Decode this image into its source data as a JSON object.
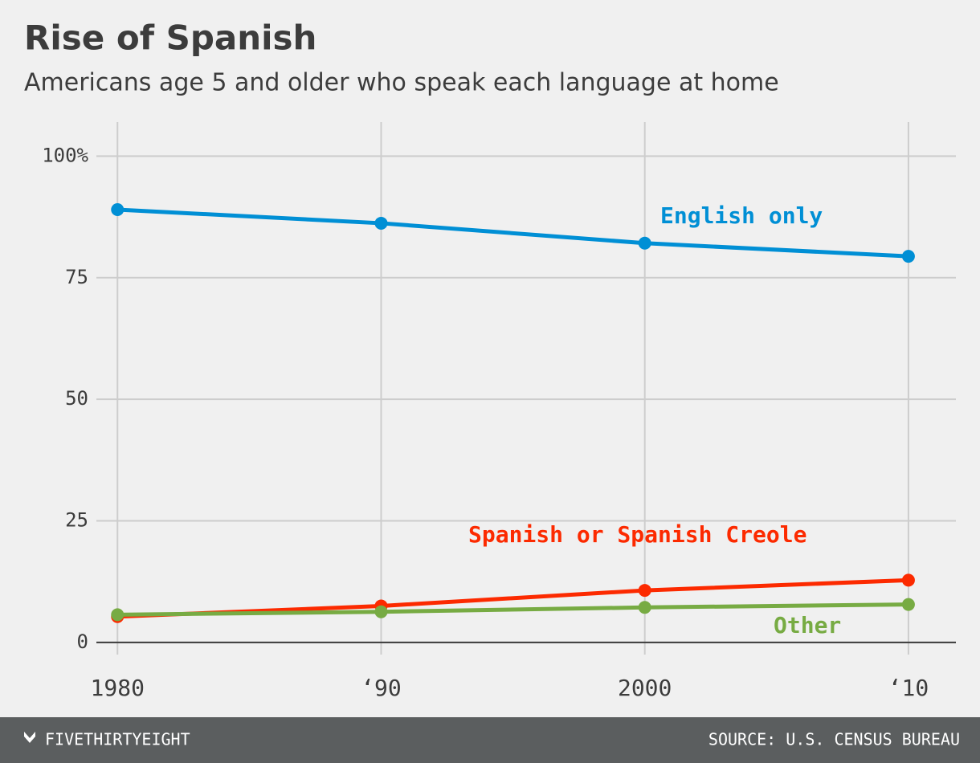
{
  "chart_data": {
    "type": "line",
    "title": "Rise of Spanish",
    "subtitle": "Americans age 5 and older who speak each language at home",
    "x": [
      1980,
      1990,
      2000,
      2010
    ],
    "xlim": [
      1979.2,
      2011.8
    ],
    "xticks": [
      1980,
      {
        "value": 1990,
        "label": "‘90"
      },
      2000,
      {
        "value": 2010,
        "label": "‘10"
      }
    ],
    "ylim": [
      -2.5,
      107
    ],
    "yticks": [
      0,
      25,
      50,
      75,
      {
        "value": 100,
        "label": "100%"
      }
    ],
    "grid": true,
    "series": [
      {
        "name": "English only",
        "color": "#008fd5",
        "values": [
          89,
          86.2,
          82.1,
          79.4
        ]
      },
      {
        "name": "Spanish or Spanish Creole",
        "color": "#fc2a00",
        "values": [
          5.3,
          7.5,
          10.7,
          12.8
        ]
      },
      {
        "name": "Other",
        "color": "#77ab43",
        "values": [
          5.7,
          6.3,
          7.2,
          7.8
        ]
      }
    ],
    "source": "SOURCE: U.S. CENSUS BUREAU"
  },
  "footer": {
    "brand": "FIVETHIRTYEIGHT"
  }
}
